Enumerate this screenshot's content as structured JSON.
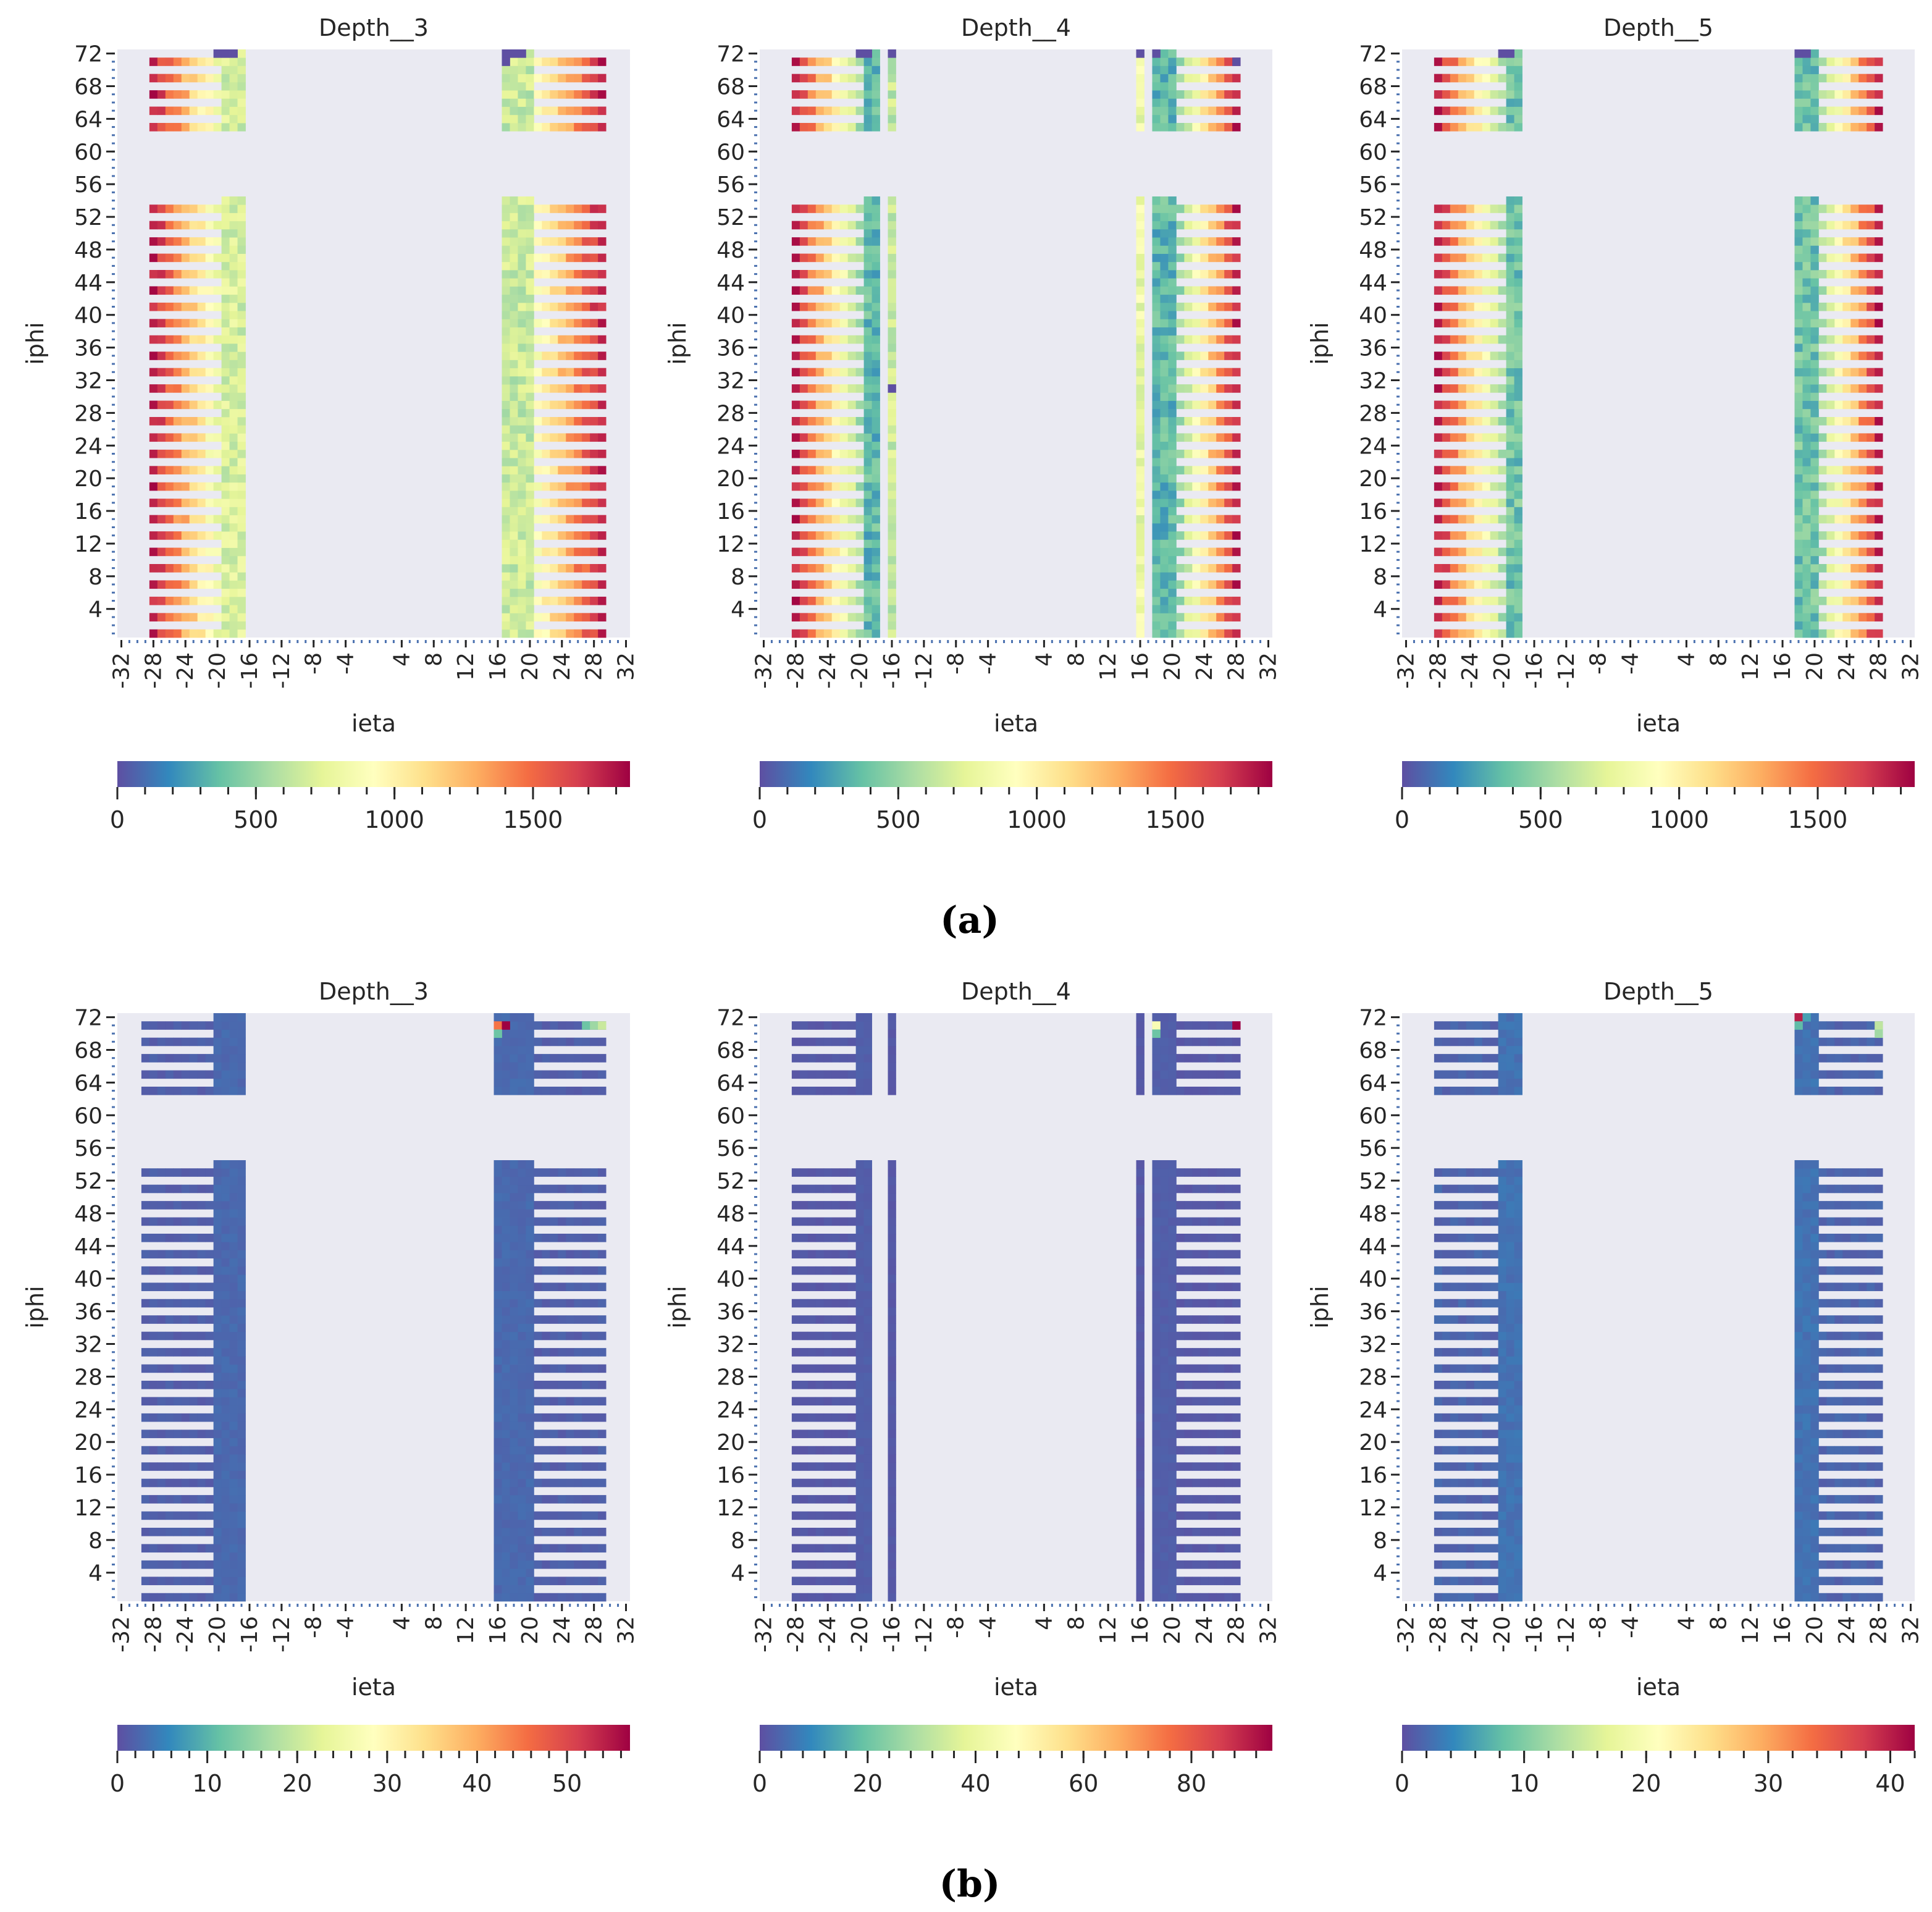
{
  "colors": {
    "background_panel": "#eaeaf2",
    "tick": "#4c72b0",
    "colormap": [
      "#5e4fa2",
      "#3288bd",
      "#66c2a5",
      "#abdda4",
      "#e6f598",
      "#ffffbf",
      "#fee08b",
      "#fdae61",
      "#f46d43",
      "#d53e4f",
      "#9e0142"
    ]
  },
  "captions": {
    "a": "(a)",
    "b": "(b)"
  },
  "chart_data": [
    {
      "type": "heatmap",
      "panel": "a",
      "title": "Depth__3",
      "xlabel": "ieta",
      "ylabel": "iphi",
      "xticks": [
        "-32",
        "-28",
        "-24",
        "-20",
        "-16",
        "-12",
        "-8",
        "-4",
        "4",
        "8",
        "12",
        "16",
        "20",
        "24",
        "28",
        "32"
      ],
      "yticks": [
        "72",
        "68",
        "64",
        "60",
        "56",
        "52",
        "48",
        "44",
        "40",
        "36",
        "32",
        "28",
        "24",
        "20",
        "16",
        "12",
        "8",
        "4"
      ],
      "xlim": [
        -32,
        32
      ],
      "ylim": [
        1,
        72
      ],
      "colorbar": {
        "min": 0,
        "max": 1850,
        "ticks": [
          "0",
          "500",
          "1000",
          "1500"
        ]
      },
      "iphi_gap": [
        55,
        62
      ],
      "alt_rows": true,
      "blocks": [
        {
          "ieta": [
            -28,
            -20
          ],
          "mode": "gradient",
          "v_out": 1750,
          "v_in": 800
        },
        {
          "ieta": [
            -19,
            -17
          ],
          "mode": "mid",
          "v": 700
        },
        {
          "ieta": [
            17,
            20
          ],
          "mode": "mid",
          "v": 650
        },
        {
          "ieta": [
            21,
            29
          ],
          "mode": "gradient",
          "v_out": 1750,
          "v_in": 900
        }
      ],
      "specials": [
        {
          "ieta": -20,
          "iphi": 72,
          "v": 0
        },
        {
          "ieta": -19,
          "iphi": 72,
          "v": 0
        },
        {
          "ieta": -18,
          "iphi": 72,
          "v": 0
        },
        {
          "ieta": 17,
          "iphi": 72,
          "v": 0
        },
        {
          "ieta": 18,
          "iphi": 72,
          "v": 0
        },
        {
          "ieta": 19,
          "iphi": 72,
          "v": 0
        },
        {
          "ieta": 17,
          "iphi": 71,
          "v": 0
        }
      ]
    },
    {
      "type": "heatmap",
      "panel": "a",
      "title": "Depth__4",
      "xlabel": "ieta",
      "ylabel": "iphi",
      "xticks": [
        "-32",
        "-28",
        "-24",
        "-20",
        "-16",
        "-12",
        "-8",
        "-4",
        "4",
        "8",
        "12",
        "16",
        "20",
        "24",
        "28",
        "32"
      ],
      "yticks": [
        "72",
        "68",
        "64",
        "60",
        "56",
        "52",
        "48",
        "44",
        "40",
        "36",
        "32",
        "28",
        "24",
        "20",
        "16",
        "12",
        "8",
        "4"
      ],
      "xlim": [
        -32,
        32
      ],
      "ylim": [
        1,
        72
      ],
      "colorbar": {
        "min": 0,
        "max": 1850,
        "ticks": [
          "0",
          "500",
          "1000",
          "1500"
        ]
      },
      "iphi_gap": [
        55,
        62
      ],
      "alt_rows": true,
      "blocks": [
        {
          "ieta": [
            -28,
            -20
          ],
          "mode": "gradient",
          "v_out": 1750,
          "v_in": 550
        },
        {
          "ieta": [
            -19,
            -18
          ],
          "mode": "mid",
          "v": 350
        },
        {
          "ieta": [
            -16,
            -16
          ],
          "mode": "mid",
          "v": 650
        },
        {
          "ieta": [
            16,
            16
          ],
          "mode": "mid",
          "v": 800
        },
        {
          "ieta": [
            18,
            20
          ],
          "mode": "mid",
          "v": 350
        },
        {
          "ieta": [
            21,
            28
          ],
          "mode": "gradient",
          "v_out": 1750,
          "v_in": 500
        }
      ],
      "specials": [
        {
          "ieta": -20,
          "iphi": 72,
          "v": 0
        },
        {
          "ieta": -19,
          "iphi": 72,
          "v": 0
        },
        {
          "ieta": -16,
          "iphi": 72,
          "v": 0
        },
        {
          "ieta": -16,
          "iphi": 31,
          "v": 0
        },
        {
          "ieta": 16,
          "iphi": 72,
          "v": 0
        },
        {
          "ieta": 18,
          "iphi": 72,
          "v": 0
        },
        {
          "ieta": 28,
          "iphi": 71,
          "v": 0
        }
      ]
    },
    {
      "type": "heatmap",
      "panel": "a",
      "title": "Depth__5",
      "xlabel": "ieta",
      "ylabel": "iphi",
      "xticks": [
        "-32",
        "-28",
        "-24",
        "-20",
        "-16",
        "-12",
        "-8",
        "-4",
        "4",
        "8",
        "12",
        "16",
        "20",
        "24",
        "28",
        "32"
      ],
      "yticks": [
        "72",
        "68",
        "64",
        "60",
        "56",
        "52",
        "48",
        "44",
        "40",
        "36",
        "32",
        "28",
        "24",
        "20",
        "16",
        "12",
        "8",
        "4"
      ],
      "xlim": [
        -32,
        32
      ],
      "ylim": [
        1,
        72
      ],
      "colorbar": {
        "min": 0,
        "max": 1850,
        "ticks": [
          "0",
          "500",
          "1000",
          "1500"
        ]
      },
      "iphi_gap": [
        55,
        62
      ],
      "alt_rows": true,
      "blocks": [
        {
          "ieta": [
            -28,
            -20
          ],
          "mode": "gradient",
          "v_out": 1750,
          "v_in": 550
        },
        {
          "ieta": [
            -19,
            -18
          ],
          "mode": "mid",
          "v": 400
        },
        {
          "ieta": [
            18,
            20
          ],
          "mode": "mid",
          "v": 400
        },
        {
          "ieta": [
            21,
            28
          ],
          "mode": "gradient",
          "v_out": 1750,
          "v_in": 550
        }
      ],
      "specials": [
        {
          "ieta": -20,
          "iphi": 72,
          "v": 0
        },
        {
          "ieta": -19,
          "iphi": 72,
          "v": 0
        },
        {
          "ieta": 18,
          "iphi": 72,
          "v": 0
        },
        {
          "ieta": 19,
          "iphi": 72,
          "v": 0
        }
      ]
    },
    {
      "type": "heatmap",
      "panel": "b",
      "title": "Depth__3",
      "xlabel": "ieta",
      "ylabel": "iphi",
      "xticks": [
        "-32",
        "-28",
        "-24",
        "-20",
        "-16",
        "-12",
        "-8",
        "-4",
        "4",
        "8",
        "12",
        "16",
        "20",
        "24",
        "28",
        "32"
      ],
      "yticks": [
        "72",
        "68",
        "64",
        "60",
        "56",
        "52",
        "48",
        "44",
        "40",
        "36",
        "32",
        "28",
        "24",
        "20",
        "16",
        "12",
        "8",
        "4"
      ],
      "xlim": [
        -32,
        32
      ],
      "ylim": [
        1,
        72
      ],
      "colorbar": {
        "min": 0,
        "max": 57,
        "ticks": [
          "0",
          "10",
          "20",
          "30",
          "40",
          "50"
        ]
      },
      "iphi_gap": [
        55,
        62
      ],
      "alt_rows": true,
      "blocks": [
        {
          "ieta": [
            -29,
            -21
          ],
          "mode": "flat",
          "v": 1
        },
        {
          "ieta": [
            -20,
            -17
          ],
          "mode": "flat",
          "v": 2
        },
        {
          "ieta": [
            16,
            20
          ],
          "mode": "flat",
          "v": 2
        },
        {
          "ieta": [
            21,
            29
          ],
          "mode": "flat",
          "v": 1
        }
      ],
      "specials": [
        {
          "ieta": 16,
          "iphi": 71,
          "v": 45
        },
        {
          "ieta": 17,
          "iphi": 71,
          "v": 57
        },
        {
          "ieta": 16,
          "iphi": 70,
          "v": 12
        },
        {
          "ieta": 27,
          "iphi": 71,
          "v": 12
        },
        {
          "ieta": 28,
          "iphi": 71,
          "v": 16
        },
        {
          "ieta": 29,
          "iphi": 71,
          "v": 20
        }
      ]
    },
    {
      "type": "heatmap",
      "panel": "b",
      "title": "Depth__4",
      "xlabel": "ieta",
      "ylabel": "iphi",
      "xticks": [
        "-32",
        "-28",
        "-24",
        "-20",
        "-16",
        "-12",
        "-8",
        "-4",
        "4",
        "8",
        "12",
        "16",
        "20",
        "24",
        "28",
        "32"
      ],
      "yticks": [
        "72",
        "68",
        "64",
        "60",
        "56",
        "52",
        "48",
        "44",
        "40",
        "36",
        "32",
        "28",
        "24",
        "20",
        "16",
        "12",
        "8",
        "4"
      ],
      "xlim": [
        -32,
        32
      ],
      "ylim": [
        1,
        72
      ],
      "colorbar": {
        "min": 0,
        "max": 95,
        "ticks": [
          "0",
          "20",
          "40",
          "60",
          "80"
        ]
      },
      "iphi_gap": [
        55,
        62
      ],
      "alt_rows": true,
      "blocks": [
        {
          "ieta": [
            -28,
            -21
          ],
          "mode": "flat",
          "v": 1
        },
        {
          "ieta": [
            -20,
            -19
          ],
          "mode": "flat",
          "v": 2
        },
        {
          "ieta": [
            -16,
            -16
          ],
          "mode": "flat",
          "v": 1
        },
        {
          "ieta": [
            16,
            16
          ],
          "mode": "flat",
          "v": 1
        },
        {
          "ieta": [
            18,
            20
          ],
          "mode": "flat",
          "v": 2
        },
        {
          "ieta": [
            21,
            28
          ],
          "mode": "flat",
          "v": 1
        }
      ],
      "specials": [
        {
          "ieta": 18,
          "iphi": 71,
          "v": 45
        },
        {
          "ieta": 18,
          "iphi": 70,
          "v": 20
        },
        {
          "ieta": 28,
          "iphi": 71,
          "v": 95
        }
      ]
    },
    {
      "type": "heatmap",
      "panel": "b",
      "title": "Depth__5",
      "xlabel": "ieta",
      "ylabel": "iphi",
      "xticks": [
        "-32",
        "-28",
        "-24",
        "-20",
        "-16",
        "-12",
        "-8",
        "-4",
        "4",
        "8",
        "12",
        "16",
        "20",
        "24",
        "28",
        "32"
      ],
      "yticks": [
        "72",
        "68",
        "64",
        "60",
        "56",
        "52",
        "48",
        "44",
        "40",
        "36",
        "32",
        "28",
        "24",
        "20",
        "16",
        "12",
        "8",
        "4"
      ],
      "xlim": [
        -32,
        32
      ],
      "ylim": [
        1,
        72
      ],
      "colorbar": {
        "min": 0,
        "max": 42,
        "ticks": [
          "0",
          "10",
          "20",
          "30",
          "40"
        ]
      },
      "iphi_gap": [
        55,
        62
      ],
      "alt_rows": true,
      "blocks": [
        {
          "ieta": [
            -28,
            -21
          ],
          "mode": "flat",
          "v": 1
        },
        {
          "ieta": [
            -20,
            -18
          ],
          "mode": "flat",
          "v": 2
        },
        {
          "ieta": [
            18,
            20
          ],
          "mode": "flat",
          "v": 2
        },
        {
          "ieta": [
            21,
            28
          ],
          "mode": "flat",
          "v": 1
        }
      ],
      "specials": [
        {
          "ieta": 18,
          "iphi": 72,
          "v": 40
        },
        {
          "ieta": 19,
          "iphi": 72,
          "v": 6
        },
        {
          "ieta": 18,
          "iphi": 71,
          "v": 8
        },
        {
          "ieta": 28,
          "iphi": 71,
          "v": 14
        },
        {
          "ieta": 28,
          "iphi": 70,
          "v": 12
        }
      ]
    }
  ]
}
